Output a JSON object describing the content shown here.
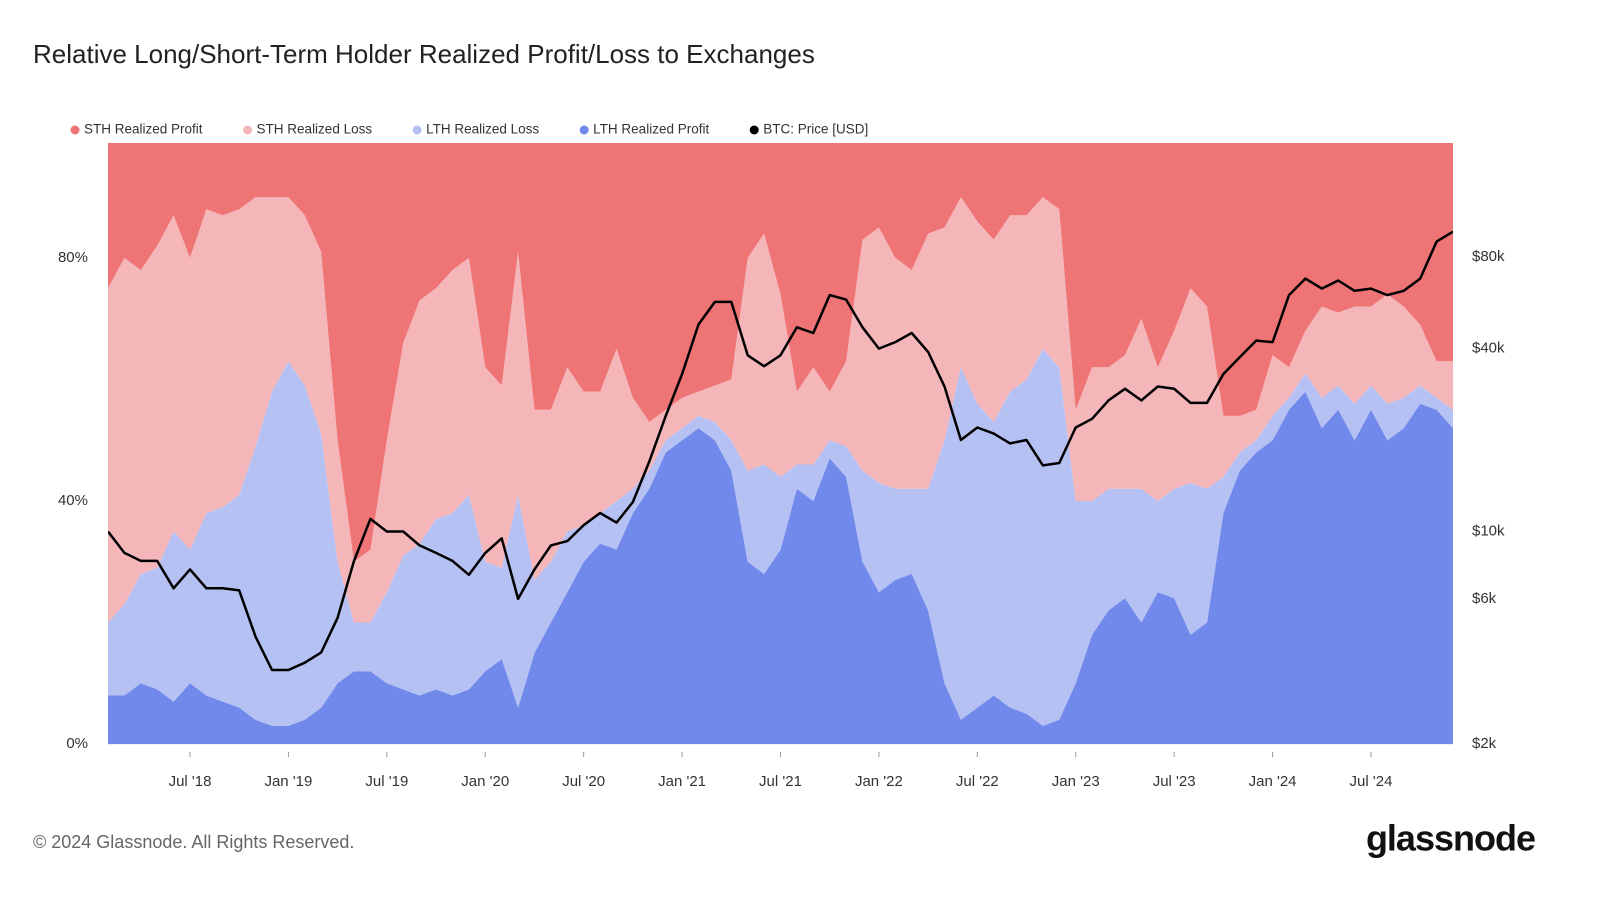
{
  "chart_data": {
    "type": "stacked-area",
    "title": "Relative Long/Short-Term Holder Realized Profit/Loss to Exchanges",
    "x": [
      "2018-02",
      "2018-03",
      "2018-04",
      "2018-05",
      "2018-06",
      "2018-07",
      "2018-08",
      "2018-09",
      "2018-10",
      "2018-11",
      "2018-12",
      "2019-01",
      "2019-02",
      "2019-03",
      "2019-04",
      "2019-05",
      "2019-06",
      "2019-07",
      "2019-08",
      "2019-09",
      "2019-10",
      "2019-11",
      "2019-12",
      "2020-01",
      "2020-02",
      "2020-03",
      "2020-04",
      "2020-05",
      "2020-06",
      "2020-07",
      "2020-08",
      "2020-09",
      "2020-10",
      "2020-11",
      "2020-12",
      "2021-01",
      "2021-02",
      "2021-03",
      "2021-04",
      "2021-05",
      "2021-06",
      "2021-07",
      "2021-08",
      "2021-09",
      "2021-10",
      "2021-11",
      "2021-12",
      "2022-01",
      "2022-02",
      "2022-03",
      "2022-04",
      "2022-05",
      "2022-06",
      "2022-07",
      "2022-08",
      "2022-09",
      "2022-10",
      "2022-11",
      "2022-12",
      "2023-01",
      "2023-02",
      "2023-03",
      "2023-04",
      "2023-05",
      "2023-06",
      "2023-07",
      "2023-08",
      "2023-09",
      "2023-10",
      "2023-11",
      "2023-12",
      "2024-01",
      "2024-02",
      "2024-03",
      "2024-04",
      "2024-05",
      "2024-06",
      "2024-07",
      "2024-08",
      "2024-09",
      "2024-10",
      "2024-11",
      "2024-12"
    ],
    "xlim": [
      "2018-02",
      "2024-12"
    ],
    "xticks": [
      {
        "value": "2018-07",
        "label": "Jul '18"
      },
      {
        "value": "2019-01",
        "label": "Jan '19"
      },
      {
        "value": "2019-07",
        "label": "Jul '19"
      },
      {
        "value": "2020-01",
        "label": "Jan '20"
      },
      {
        "value": "2020-07",
        "label": "Jul '20"
      },
      {
        "value": "2021-01",
        "label": "Jan '21"
      },
      {
        "value": "2021-07",
        "label": "Jul '21"
      },
      {
        "value": "2022-01",
        "label": "Jan '22"
      },
      {
        "value": "2022-07",
        "label": "Jul '22"
      },
      {
        "value": "2023-01",
        "label": "Jan '23"
      },
      {
        "value": "2023-07",
        "label": "Jul '23"
      },
      {
        "value": "2024-01",
        "label": "Jan '24"
      },
      {
        "value": "2024-07",
        "label": "Jul '24"
      }
    ],
    "ylim": [
      -1.3,
      98.9
    ],
    "yticks": [
      {
        "value": 0,
        "label": "0%"
      },
      {
        "value": 40,
        "label": "40%"
      },
      {
        "value": 80,
        "label": "80%"
      }
    ],
    "y2lim": [
      1880,
      190000
    ],
    "y2log": true,
    "y2ticks": [
      {
        "value": 2000,
        "label": "$2k"
      },
      {
        "value": 6000,
        "label": "$6k"
      },
      {
        "value": 10000,
        "label": "$10k"
      },
      {
        "value": 40000,
        "label": "$40k"
      },
      {
        "value": 80000,
        "label": "$80k"
      }
    ],
    "stacked": true,
    "legend": "top-left",
    "series": [
      {
        "name": "STH Realized Profit",
        "color": "#ee7475",
        "values": [
          25,
          20,
          22,
          18,
          13,
          20,
          12,
          13,
          12,
          10,
          10,
          10,
          13,
          19,
          50,
          70,
          68,
          50,
          34,
          27,
          25,
          22,
          20,
          38,
          41,
          19,
          45,
          45,
          38,
          42,
          42,
          35,
          43,
          47,
          45,
          43,
          42,
          41,
          40,
          20,
          16,
          26,
          42,
          38,
          42,
          37,
          17,
          15,
          20,
          22,
          16,
          15,
          10,
          14,
          17,
          13,
          13,
          10,
          12,
          45,
          38,
          38,
          36,
          30,
          38,
          32,
          25,
          28,
          46,
          46,
          45,
          36,
          38,
          32,
          28,
          29,
          28,
          28,
          26,
          28,
          31,
          37,
          37
        ]
      },
      {
        "name": "STH Realized Loss",
        "color": "#f5b6b9",
        "values": [
          55,
          57,
          50,
          53,
          52,
          48,
          50,
          48,
          47,
          41,
          32,
          27,
          28,
          30,
          20,
          10,
          12,
          25,
          35,
          40,
          38,
          40,
          39,
          32,
          30,
          40,
          28,
          25,
          27,
          22,
          20,
          25,
          15,
          8,
          5,
          5,
          4,
          6,
          10,
          35,
          38,
          30,
          12,
          16,
          8,
          14,
          38,
          42,
          38,
          36,
          42,
          35,
          28,
          30,
          30,
          29,
          27,
          25,
          26,
          15,
          22,
          20,
          22,
          28,
          22,
          26,
          32,
          30,
          10,
          6,
          5,
          10,
          5,
          7,
          15,
          12,
          16,
          13,
          18,
          15,
          10,
          6,
          8
        ]
      },
      {
        "name": "LTH Realized Loss",
        "color": "#b6c1f3",
        "values": [
          12,
          15,
          18,
          20,
          28,
          22,
          30,
          32,
          35,
          45,
          55,
          60,
          55,
          45,
          20,
          8,
          8,
          15,
          22,
          25,
          28,
          30,
          32,
          18,
          15,
          35,
          12,
          10,
          10,
          6,
          5,
          8,
          4,
          3,
          2,
          2,
          2,
          3,
          5,
          15,
          18,
          12,
          4,
          6,
          3,
          5,
          15,
          18,
          15,
          14,
          20,
          40,
          58,
          50,
          45,
          52,
          55,
          62,
          58,
          30,
          22,
          20,
          18,
          22,
          15,
          18,
          25,
          22,
          6,
          3,
          2,
          4,
          2,
          3,
          5,
          4,
          6,
          4,
          6,
          5,
          3,
          2,
          3
        ]
      },
      {
        "name": "LTH Realized Profit",
        "color": "#7189ea",
        "values": [
          8,
          8,
          10,
          9,
          7,
          10,
          8,
          7,
          6,
          4,
          3,
          3,
          4,
          6,
          10,
          12,
          12,
          10,
          9,
          8,
          9,
          8,
          9,
          12,
          14,
          6,
          15,
          20,
          25,
          30,
          33,
          32,
          38,
          42,
          48,
          50,
          52,
          50,
          45,
          30,
          28,
          32,
          42,
          40,
          47,
          44,
          30,
          25,
          27,
          28,
          22,
          10,
          4,
          6,
          8,
          6,
          5,
          3,
          4,
          10,
          18,
          22,
          24,
          20,
          25,
          24,
          18,
          20,
          38,
          45,
          48,
          50,
          55,
          58,
          52,
          55,
          50,
          55,
          50,
          52,
          56,
          55,
          52
        ]
      },
      {
        "name": "BTC: Price [USD]",
        "color": "#000000",
        "axis": "y2",
        "values": [
          10000,
          8500,
          8000,
          8000,
          6500,
          7500,
          6500,
          6500,
          6400,
          4500,
          3500,
          3500,
          3700,
          4000,
          5200,
          8000,
          11000,
          10000,
          10000,
          9000,
          8500,
          8000,
          7200,
          8500,
          9500,
          6000,
          7500,
          9000,
          9300,
          10500,
          11500,
          10700,
          12500,
          17000,
          24000,
          33000,
          48000,
          57000,
          57000,
          38000,
          35000,
          38000,
          47000,
          45000,
          60000,
          58000,
          47000,
          40000,
          42000,
          45000,
          39000,
          30000,
          20000,
          22000,
          21000,
          19500,
          20000,
          16500,
          16800,
          22000,
          23500,
          27000,
          29500,
          27000,
          30000,
          29500,
          26500,
          26500,
          33000,
          37500,
          42500,
          42000,
          60000,
          68000,
          63000,
          67000,
          62000,
          63000,
          60000,
          62000,
          68000,
          90000,
          97000
        ]
      }
    ]
  },
  "footer": {
    "copyright": "© 2024 Glassnode. All Rights Reserved.",
    "brand": "glassnode"
  }
}
